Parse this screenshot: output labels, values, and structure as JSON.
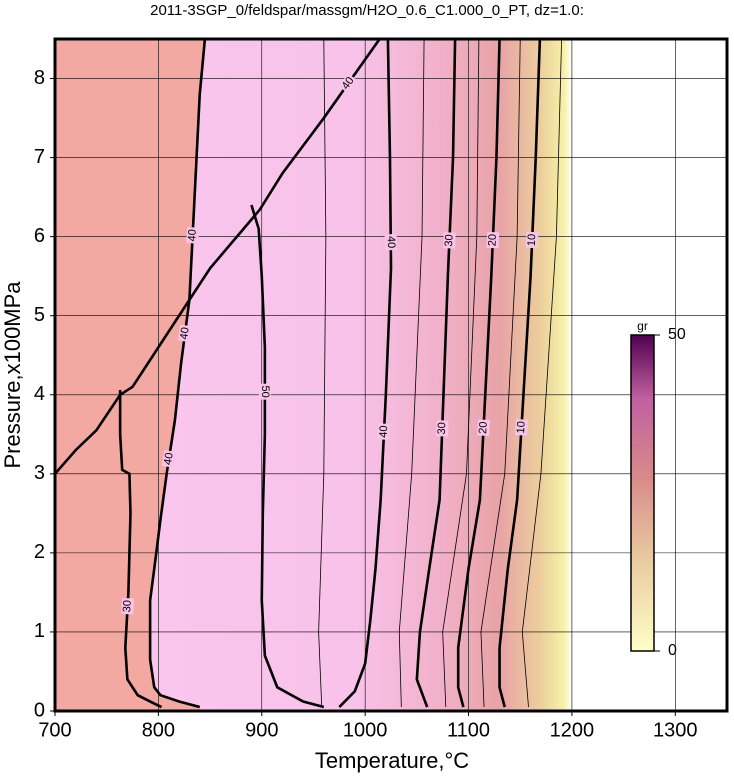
{
  "chart_data": {
    "type": "contour",
    "title": "2011-3SGP_0/feldspar/massgm/H2O_0.6_C1.000_0_PT, dz=1.0:",
    "x_label": "Temperature,°C",
    "y_label": "Pressure,x100MPa",
    "xlim": [
      700,
      1350
    ],
    "ylim": [
      0,
      8.5
    ],
    "xticks": [
      700,
      800,
      900,
      1000,
      1100,
      1200,
      1300
    ],
    "yticks": [
      0,
      1,
      2,
      3,
      4,
      5,
      6,
      7,
      8
    ],
    "grid": true,
    "colorbar": {
      "label": "gr",
      "range": [
        0,
        50
      ],
      "ticks": [
        0,
        50
      ]
    },
    "contours": [
      {
        "level": 40,
        "x": [
          700,
          720,
          740,
          763,
          775,
          830,
          850,
          898,
          920,
          960,
          1014
        ],
        "y": [
          3.0,
          3.3,
          3.55,
          4.0,
          4.1,
          5.2,
          5.6,
          6.34,
          6.8,
          7.5,
          8.5
        ]
      },
      {
        "level": 40,
        "x": [
          845,
          840,
          835,
          830,
          822,
          816,
          808,
          802,
          797,
          792,
          792,
          796,
          802,
          820,
          840
        ],
        "y": [
          8.5,
          7.8,
          6.5,
          5.2,
          4.4,
          3.68,
          3.0,
          2.42,
          1.9,
          1.4,
          0.65,
          0.3,
          0.2,
          0.12,
          0.05
        ]
      },
      {
        "level": 30,
        "x": [
          763,
          763,
          765,
          772,
          773,
          771,
          768,
          770,
          780,
          795,
          803
        ],
        "y": [
          4.06,
          3.5,
          3.05,
          3.0,
          2.5,
          1.5,
          0.8,
          0.4,
          0.2,
          0.1,
          0.05
        ]
      },
      {
        "level": 50,
        "x": [
          890,
          897,
          900,
          903,
          903,
          901,
          900,
          903,
          915,
          940,
          960
        ],
        "y": [
          6.4,
          6.1,
          5.5,
          4.6,
          3.5,
          2.5,
          1.4,
          0.7,
          0.3,
          0.12,
          0.05
        ]
      },
      {
        "level": 40,
        "x": [
          1022,
          1024,
          1025,
          1020,
          1015,
          1010,
          1005,
          1000,
          990,
          975
        ],
        "y": [
          8.5,
          7,
          5.6,
          4,
          2.67,
          1.8,
          1.15,
          0.6,
          0.25,
          0.05
        ]
      },
      {
        "level": 30,
        "x": [
          1087,
          1085,
          1080,
          1072,
          1062,
          1053,
          1050,
          1060
        ],
        "y": [
          8.5,
          7,
          5.5,
          2.67,
          1.8,
          1.0,
          0.4,
          0.05
        ]
      },
      {
        "level": 20,
        "x": [
          1130,
          1127,
          1122,
          1111,
          1100,
          1090,
          1090,
          1095
        ],
        "y": [
          8.5,
          7,
          5.5,
          2.67,
          1.8,
          0.8,
          0.3,
          0.05
        ]
      },
      {
        "level": 10,
        "x": [
          1169,
          1165,
          1160,
          1147,
          1138,
          1130,
          1130,
          1135
        ],
        "y": [
          8.5,
          7,
          5.5,
          2.67,
          1.8,
          0.8,
          0.3,
          0.05
        ]
      },
      {
        "level": 45,
        "x": [
          960,
          962,
          960,
          955,
          958
        ],
        "y": [
          8.5,
          6,
          3,
          1,
          0.05
        ]
      },
      {
        "level": 35,
        "x": [
          1057,
          1055,
          1045,
          1033,
          1035
        ],
        "y": [
          8.5,
          6,
          3,
          1,
          0.05
        ]
      },
      {
        "level": 25,
        "x": [
          1110,
          1108,
          1098,
          1075,
          1078
        ],
        "y": [
          8.5,
          6,
          3,
          1,
          0.05
        ]
      },
      {
        "level": 15,
        "x": [
          1150,
          1147,
          1135,
          1112,
          1115
        ],
        "y": [
          8.5,
          6,
          3,
          1,
          0.05
        ]
      },
      {
        "level": 5,
        "x": [
          1190,
          1185,
          1170,
          1152,
          1158
        ],
        "y": [
          8.5,
          6,
          3,
          1,
          0.05
        ]
      }
    ]
  }
}
